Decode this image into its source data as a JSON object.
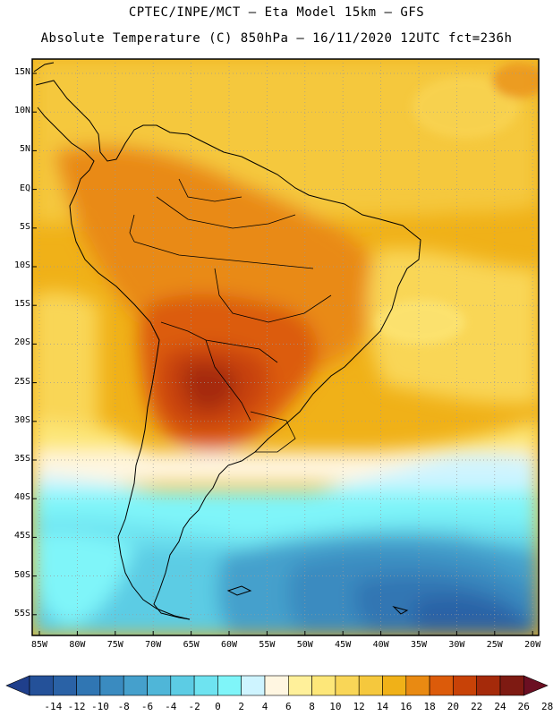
{
  "header": {
    "line1": "CPTEC/INPE/MCT –  Eta Model 15km – GFS",
    "line2": "Absolute Temperature (C) 850hPa – 16/11/2020 12UTC fct=236h"
  },
  "axes": {
    "lat_labels": [
      "15N",
      "10N",
      "5N",
      "EQ",
      "5S",
      "10S",
      "15S",
      "20S",
      "25S",
      "30S",
      "35S",
      "40S",
      "45S",
      "50S",
      "55S"
    ],
    "lon_labels": [
      "85W",
      "80W",
      "75W",
      "70W",
      "65W",
      "60W",
      "55W",
      "50W",
      "45W",
      "40W",
      "35W",
      "30W",
      "25W",
      "20W"
    ]
  },
  "colorbar": {
    "labels": [
      "-14",
      "-12",
      "-10",
      "-8",
      "-6",
      "-4",
      "-2",
      "0",
      "2",
      "4",
      "6",
      "8",
      "10",
      "12",
      "14",
      "16",
      "18",
      "20",
      "22",
      "24",
      "26",
      "28"
    ],
    "colors": [
      "#1f3f8c",
      "#245199",
      "#2a62a6",
      "#3076b3",
      "#3a8bc0",
      "#45a0cc",
      "#4fb6d8",
      "#5ccce4",
      "#6ee3f0",
      "#7ff5f9",
      "#cef4ff",
      "#fff6e1",
      "#fff09a",
      "#fde779",
      "#f9d657",
      "#f5c83d",
      "#f0b118",
      "#e98a12",
      "#dc5b0a",
      "#c84207",
      "#a52a0a",
      "#7e1a12",
      "#6b0f22"
    ]
  }
}
